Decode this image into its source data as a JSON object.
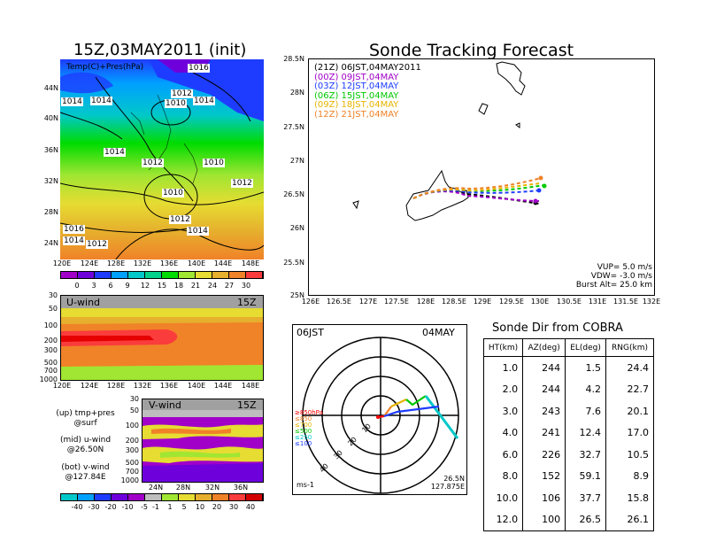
{
  "map_panel": {
    "title": "15Z,03MAY2011 (init)",
    "overlay_label": "Temp(C)+Pres(hPa)",
    "lat_labels": [
      "44N",
      "40N",
      "36N",
      "32N",
      "28N",
      "24N"
    ],
    "lon_labels": [
      "120E",
      "124E",
      "128E",
      "132E",
      "136E",
      "140E",
      "144E",
      "148E"
    ],
    "pressure_labels": [
      "1016",
      "1012",
      "1014",
      "1014",
      "1010",
      "1014",
      "1014",
      "1012",
      "1010",
      "1010",
      "1012",
      "1012",
      "1014",
      "1016",
      "1014",
      "1012"
    ],
    "colorbar_ticks": [
      "0",
      "3",
      "6",
      "9",
      "12",
      "15",
      "18",
      "21",
      "24",
      "27",
      "30"
    ]
  },
  "uwind_panel": {
    "label": "U-wind",
    "time": "15Z",
    "pressure_ticks": [
      "30",
      "50",
      "100",
      "200",
      "300",
      "500",
      "700",
      "1000"
    ],
    "lon_labels": [
      "120E",
      "124E",
      "128E",
      "132E",
      "136E",
      "140E",
      "144E",
      "148E"
    ]
  },
  "vwind_panel": {
    "label": "V-wind",
    "time": "15Z",
    "pressure_ticks": [
      "30",
      "50",
      "100",
      "200",
      "300",
      "500",
      "700",
      "1000"
    ],
    "lat_labels": [
      "24N",
      "28N",
      "32N",
      "36N"
    ],
    "colorbar_ticks": [
      "-40",
      "-30",
      "-20",
      "-10",
      "-5",
      "-1",
      "1",
      "5",
      "10",
      "20",
      "30",
      "40"
    ]
  },
  "legend_notes": [
    {
      "l1": "(up) tmp+pres",
      "l2": "@surf"
    },
    {
      "l1": "(mid) u-wind",
      "l2": "@26.50N"
    },
    {
      "l1": "(bot) v-wind",
      "l2": "@127.84E"
    }
  ],
  "tracking": {
    "title": "Sonde Tracking Forecast",
    "y_labels": [
      "28.5N",
      "28N",
      "27.5N",
      "27N",
      "26.5N",
      "26N",
      "25.5N",
      "25N"
    ],
    "x_labels": [
      "126E",
      "126.5E",
      "127E",
      "127.5E",
      "128E",
      "128.5E",
      "129E",
      "129.5E",
      "130E",
      "130.5E",
      "131E",
      "131.5E",
      "132E"
    ],
    "legend": [
      {
        "text": "(21Z)  06JST,04MAY2011",
        "color": "#000000"
      },
      {
        "text": "(00Z)  09JST,04MAY",
        "color": "#a000c8"
      },
      {
        "text": "(03Z)  12JST,04MAY",
        "color": "#1e3cff"
      },
      {
        "text": "(06Z)  15JST,04MAY",
        "color": "#00c800"
      },
      {
        "text": "(09Z)  18JST,04MAY",
        "color": "#e6b400"
      },
      {
        "text": "(12Z)  21JST,04MAY",
        "color": "#f08228"
      }
    ],
    "vup": "VUP=  5.0  m/s",
    "vdw": "VDW= -3.0  m/s",
    "burst": "Burst Alt=  25.0  km"
  },
  "polar": {
    "time": "06JST",
    "date": "04MAY",
    "unit": "ms-1",
    "loc_lat": "26.5N",
    "loc_lon": "127.875E",
    "ring_labels": [
      "10",
      "20",
      "30",
      "40"
    ],
    "levels": [
      {
        "text": "≥850hPa",
        "color": "#ff0000"
      },
      {
        "text": "≤850",
        "color": "#f08228"
      },
      {
        "text": "≤700",
        "color": "#e6b400"
      },
      {
        "text": "≤500",
        "color": "#00c800"
      },
      {
        "text": "≤250",
        "color": "#00c8c8"
      },
      {
        "text": "≤100",
        "color": "#1e3cff"
      }
    ]
  },
  "direction_table": {
    "title": "Sonde Dir from COBRA",
    "headers": [
      "HT(km)",
      "AZ(deg)",
      "EL(deg)",
      "RNG(km)"
    ],
    "rows": [
      [
        "1.0",
        "244",
        "1.5",
        "24.4"
      ],
      [
        "2.0",
        "244",
        "4.2",
        "22.7"
      ],
      [
        "3.0",
        "243",
        "7.6",
        "20.1"
      ],
      [
        "4.0",
        "241",
        "12.4",
        "17.0"
      ],
      [
        "6.0",
        "226",
        "32.7",
        "10.5"
      ],
      [
        "8.0",
        "152",
        "59.1",
        "8.9"
      ],
      [
        "10.0",
        "106",
        "37.7",
        "15.8"
      ],
      [
        "12.0",
        "100",
        "26.5",
        "26.1"
      ]
    ]
  },
  "colors": {
    "temp_scale": [
      "#a000c8",
      "#6e00dc",
      "#1e3cff",
      "#00a0ff",
      "#00c8c8",
      "#00d28c",
      "#00dc00",
      "#a0e632",
      "#e6dc32",
      "#e6af2d",
      "#f08228",
      "#fa3c3c"
    ],
    "wind_scale": [
      "#00c8c8",
      "#00a0ff",
      "#1e3cff",
      "#6e00dc",
      "#a000c8",
      "#bebebe",
      "#a0e632",
      "#e6dc32",
      "#e6af2d",
      "#f08228",
      "#fa3c3c",
      "#d20000"
    ]
  }
}
